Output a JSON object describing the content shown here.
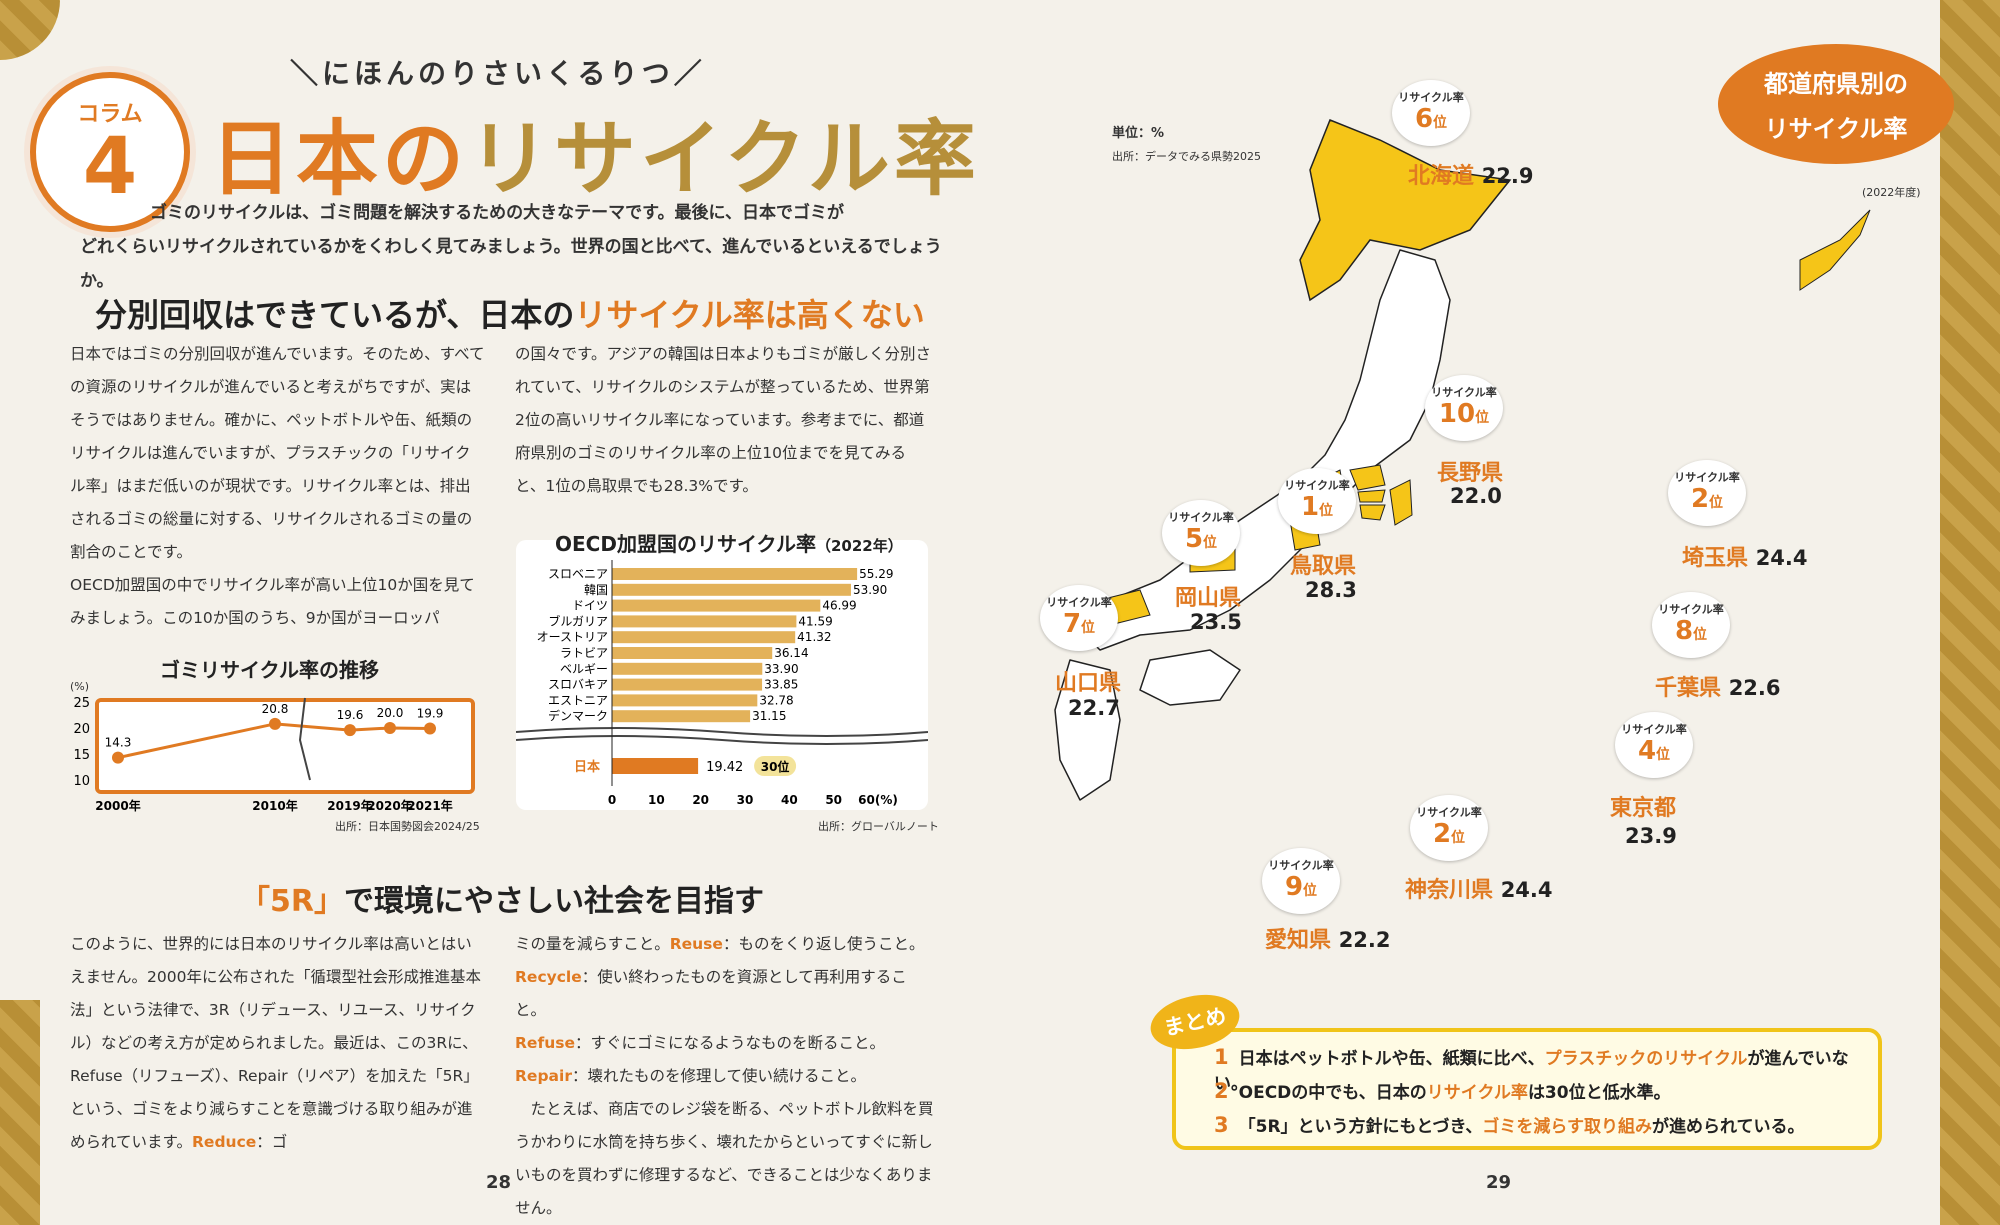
{
  "left_page": {
    "badge_label": "コラム",
    "badge_number": "4",
    "kicker": "＼にほんのりさいくるりつ／",
    "title_part1": "日本の",
    "title_part2": "リサイクル率",
    "intro_line1": "ゴミのリサイクルは、ゴミ問題を解決するための大きなテーマです。最後に、日本でゴミが",
    "intro_line2": "どれくらいリサイクルされているかをくわしく見てみましょう。世界の国と比べて、進んでいるといえるでしょうか。",
    "section1_heading_a": "分別回収はできているが、日本の",
    "section1_heading_b": "リサイクル率は高くない",
    "section1_col1": "日本ではゴミの分別回収が進んでいます。そのため、すべての資源のリサイクルが進んでいると考えがちですが、実はそうではありません。確かに、ペットボトルや缶、紙類のリサイクルは進んでいますが、プラスチックの「リサイクル率」はまだ低いのが現状です。リサイクル率とは、排出されるゴミの総量に対する、リサイクルされるゴミの量の割合のことです。",
    "section1_col1b": "OECD加盟国の中でリサイクル率が高い上位10か国を見てみましょう。この10か国のうち、9か国がヨーロッパ",
    "section1_col2": "の国々です。アジアの韓国は日本よりもゴミが厳しく分別されていて、リサイクルのシステムが整っているため、世界第2位の高いリサイクル率になっています。参考までに、都道府県別のゴミのリサイクル率の上位10位までを見てみると、1位の鳥取県でも28.3%です。",
    "section2_heading_q": "「5R」",
    "section2_heading_rest": "で環境にやさしい社会を目指す",
    "section2_col1_a": "このように、世界的には日本のリサイクル率は高いとはいえません。2000年に公布された「循環型社会形成推進基本法」という法律で、3R（リデュース、リユース、リサイクル）などの考え方が定められました。最近は、この3Rに、Refuse（リフューズ）、Repair（リペア）を加えた「5R」という、ゴミをより減らすことを意識づける取り組みが進められています。",
    "section2_col1_reduce": "Reduce",
    "section2_col1_end": "：ゴ",
    "section2_col2_a": "ミの量を減らすこと。",
    "reuse": "Reuse",
    "reuse_desc": "：ものをくり返し使うこと。",
    "recycle": "Recycle",
    "recycle_desc": "：使い終わったものを資源として再利用すること。",
    "refuse": "Refuse",
    "refuse_desc": "：すぐにゴミになるようなものを断ること。",
    "repair": "Repair",
    "repair_desc": "：壊れたものを修理して使い続けること。",
    "section2_col2_b": "たとえば、商店でのレジ袋を断る、ペットボトル飲料を買うかわりに水筒を持ち歩く、壊れたからといってすぐに新しいものを買わずに修理するなど、できることは少なくありません。",
    "page_number": "28"
  },
  "line_chart": {
    "title": "ゴミリサイクル率の推移",
    "unit": "(%)",
    "source": "出所：日本国勢図会2024/25",
    "y_ticks": [
      "25",
      "20",
      "15",
      "10"
    ],
    "x_labels": [
      "2000年",
      "2010年",
      "2019年",
      "2020年",
      "2021年"
    ],
    "values": [
      14.3,
      20.8,
      19.6,
      20.0,
      19.9
    ],
    "value_labels": [
      "14.3",
      "20.8",
      "19.6",
      "20.0",
      "19.9"
    ],
    "color": "#e07a22"
  },
  "bar_chart": {
    "title": "OECD加盟国のリサイクル率",
    "year": "（2022年）",
    "source": "出所：グローバルノート",
    "categories": [
      "スロベニア",
      "韓国",
      "ドイツ",
      "ブルガリア",
      "オーストリア",
      "ラトビア",
      "ベルギー",
      "スロバキア",
      "エストニア",
      "デンマーク"
    ],
    "values": [
      55.29,
      53.9,
      46.99,
      41.59,
      41.32,
      36.14,
      33.9,
      33.85,
      32.78,
      31.15
    ],
    "value_labels": [
      "55.29",
      "53.90",
      "46.99",
      "41.59",
      "41.32",
      "36.14",
      "33.90",
      "33.85",
      "32.78",
      "31.15"
    ],
    "japan_label": "日本",
    "japan_value": 19.42,
    "japan_value_label": "19.42",
    "japan_rank": "30位",
    "x_ticks": [
      "0",
      "10",
      "20",
      "30",
      "40",
      "50",
      "60(%)"
    ],
    "xlim": [
      0,
      60
    ],
    "bar_color": "#e3b25a",
    "japan_color": "#e07a22"
  },
  "right_page": {
    "unit": "単位：%",
    "source": "出所：データでみる県勢2025",
    "legend_line1": "都道府県別の",
    "legend_line2": "リサイクル率",
    "legend_year": "(2022年度)",
    "rank_label": "リサイクル率",
    "rank_suffix": "位",
    "prefectures": [
      {
        "rank": "6",
        "name": "北海道",
        "value": "22.9"
      },
      {
        "rank": "10",
        "name": "長野県",
        "value": "22.0"
      },
      {
        "rank": "1",
        "name": "鳥取県",
        "value": "28.3"
      },
      {
        "rank": "5",
        "name": "岡山県",
        "value": "23.5"
      },
      {
        "rank": "7",
        "name": "山口県",
        "value": "22.7"
      },
      {
        "rank": "2",
        "name": "埼玉県",
        "value": "24.4"
      },
      {
        "rank": "8",
        "name": "千葉県",
        "value": "22.6"
      },
      {
        "rank": "4",
        "name": "東京都",
        "value": "23.9"
      },
      {
        "rank": "2",
        "name": "神奈川県",
        "value": "24.4"
      },
      {
        "rank": "9",
        "name": "愛知県",
        "value": "22.2"
      }
    ],
    "summary_stamp": "まとめ",
    "summary": [
      {
        "num": "1",
        "a": "日本はペットボトルや缶、紙類に比べ、",
        "b": "プラスチックのリサイクル",
        "c": "が進んでいない。"
      },
      {
        "num": "2",
        "a": "OECDの中でも、日本の",
        "b": "リサイクル率",
        "c": "は30位と低水準。"
      },
      {
        "num": "3",
        "a": "「5R」という方針にもとづき、",
        "b": "ゴミを減らす取り組み",
        "c": "が進められている。"
      }
    ],
    "page_number": "29",
    "map_color": "#f5c518"
  }
}
